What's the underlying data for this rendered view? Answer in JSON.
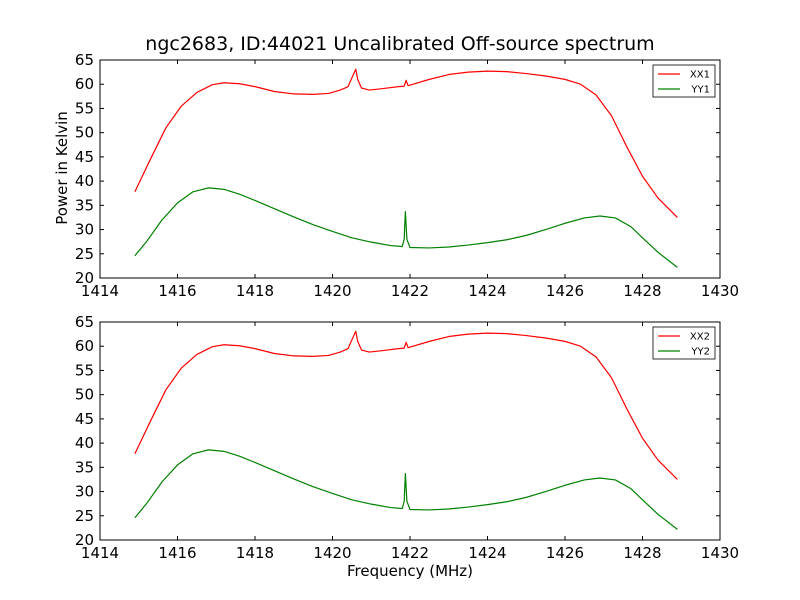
{
  "chart_data": {
    "title": "ngc2683, ID:44021 Uncalibrated Off-source spectrum",
    "ylabel": "Power in Kelvin",
    "xlabel": "Frequency (MHz)",
    "panels": [
      {
        "type": "line",
        "xlim": [
          1414,
          1430
        ],
        "ylim": [
          20,
          65
        ],
        "xticks": [
          1414,
          1416,
          1418,
          1420,
          1422,
          1424,
          1426,
          1428,
          1430
        ],
        "yticks": [
          20,
          25,
          30,
          35,
          40,
          45,
          50,
          55,
          60,
          65
        ],
        "grid": false,
        "legend_position": "top-right",
        "series": [
          {
            "name": "XX1",
            "color": "#ff0000",
            "points": [
              [
                1414.9,
                37.8
              ],
              [
                1415.3,
                44.5
              ],
              [
                1415.7,
                51.0
              ],
              [
                1416.1,
                55.5
              ],
              [
                1416.5,
                58.3
              ],
              [
                1416.9,
                59.9
              ],
              [
                1417.2,
                60.3
              ],
              [
                1417.6,
                60.1
              ],
              [
                1418.0,
                59.5
              ],
              [
                1418.5,
                58.5
              ],
              [
                1419.0,
                58.0
              ],
              [
                1419.5,
                57.9
              ],
              [
                1419.9,
                58.1
              ],
              [
                1420.2,
                58.8
              ],
              [
                1420.4,
                59.5
              ],
              [
                1420.55,
                62.2
              ],
              [
                1420.6,
                63.1
              ],
              [
                1420.65,
                61.0
              ],
              [
                1420.75,
                59.2
              ],
              [
                1420.95,
                58.8
              ],
              [
                1421.3,
                59.1
              ],
              [
                1421.7,
                59.5
              ],
              [
                1421.85,
                59.6
              ],
              [
                1421.9,
                60.8
              ],
              [
                1421.95,
                59.7
              ],
              [
                1422.5,
                61.0
              ],
              [
                1423.0,
                62.0
              ],
              [
                1423.5,
                62.5
              ],
              [
                1424.0,
                62.7
              ],
              [
                1424.5,
                62.6
              ],
              [
                1425.0,
                62.2
              ],
              [
                1425.5,
                61.7
              ],
              [
                1426.0,
                61.0
              ],
              [
                1426.4,
                60.0
              ],
              [
                1426.8,
                57.8
              ],
              [
                1427.2,
                53.5
              ],
              [
                1427.6,
                47.0
              ],
              [
                1428.0,
                41.0
              ],
              [
                1428.4,
                36.5
              ],
              [
                1428.9,
                32.5
              ]
            ]
          },
          {
            "name": "YY1",
            "color": "#008000",
            "points": [
              [
                1414.9,
                24.6
              ],
              [
                1415.2,
                27.5
              ],
              [
                1415.6,
                32.0
              ],
              [
                1416.0,
                35.5
              ],
              [
                1416.4,
                37.8
              ],
              [
                1416.8,
                38.6
              ],
              [
                1417.2,
                38.3
              ],
              [
                1417.6,
                37.3
              ],
              [
                1418.0,
                36.0
              ],
              [
                1418.5,
                34.3
              ],
              [
                1419.0,
                32.6
              ],
              [
                1419.5,
                31.0
              ],
              [
                1420.0,
                29.6
              ],
              [
                1420.5,
                28.3
              ],
              [
                1421.0,
                27.4
              ],
              [
                1421.5,
                26.7
              ],
              [
                1421.8,
                26.5
              ],
              [
                1421.85,
                28.0
              ],
              [
                1421.88,
                33.7
              ],
              [
                1421.92,
                28.0
              ],
              [
                1422.0,
                26.3
              ],
              [
                1422.5,
                26.2
              ],
              [
                1423.0,
                26.4
              ],
              [
                1423.5,
                26.8
              ],
              [
                1424.0,
                27.3
              ],
              [
                1424.5,
                27.9
              ],
              [
                1425.0,
                28.8
              ],
              [
                1425.5,
                30.0
              ],
              [
                1426.0,
                31.3
              ],
              [
                1426.5,
                32.4
              ],
              [
                1426.9,
                32.8
              ],
              [
                1427.3,
                32.4
              ],
              [
                1427.7,
                30.6
              ],
              [
                1428.0,
                28.3
              ],
              [
                1428.4,
                25.3
              ],
              [
                1428.9,
                22.2
              ]
            ]
          }
        ]
      },
      {
        "type": "line",
        "xlim": [
          1414,
          1430
        ],
        "ylim": [
          20,
          65
        ],
        "xticks": [
          1414,
          1416,
          1418,
          1420,
          1422,
          1424,
          1426,
          1428,
          1430
        ],
        "yticks": [
          20,
          25,
          30,
          35,
          40,
          45,
          50,
          55,
          60,
          65
        ],
        "grid": false,
        "legend_position": "top-right",
        "series": [
          {
            "name": "XX2",
            "color": "#ff0000",
            "points": [
              [
                1414.9,
                37.8
              ],
              [
                1415.3,
                44.5
              ],
              [
                1415.7,
                51.0
              ],
              [
                1416.1,
                55.5
              ],
              [
                1416.5,
                58.3
              ],
              [
                1416.9,
                59.9
              ],
              [
                1417.2,
                60.3
              ],
              [
                1417.6,
                60.1
              ],
              [
                1418.0,
                59.5
              ],
              [
                1418.5,
                58.5
              ],
              [
                1419.0,
                58.0
              ],
              [
                1419.5,
                57.9
              ],
              [
                1419.9,
                58.1
              ],
              [
                1420.2,
                58.8
              ],
              [
                1420.4,
                59.5
              ],
              [
                1420.55,
                62.2
              ],
              [
                1420.6,
                63.1
              ],
              [
                1420.65,
                61.0
              ],
              [
                1420.75,
                59.2
              ],
              [
                1420.95,
                58.8
              ],
              [
                1421.3,
                59.1
              ],
              [
                1421.7,
                59.5
              ],
              [
                1421.85,
                59.6
              ],
              [
                1421.9,
                60.8
              ],
              [
                1421.95,
                59.7
              ],
              [
                1422.5,
                61.0
              ],
              [
                1423.0,
                62.0
              ],
              [
                1423.5,
                62.5
              ],
              [
                1424.0,
                62.7
              ],
              [
                1424.5,
                62.6
              ],
              [
                1425.0,
                62.2
              ],
              [
                1425.5,
                61.7
              ],
              [
                1426.0,
                61.0
              ],
              [
                1426.4,
                60.0
              ],
              [
                1426.8,
                57.8
              ],
              [
                1427.2,
                53.5
              ],
              [
                1427.6,
                47.0
              ],
              [
                1428.0,
                41.0
              ],
              [
                1428.4,
                36.5
              ],
              [
                1428.9,
                32.5
              ]
            ]
          },
          {
            "name": "YY2",
            "color": "#008000",
            "points": [
              [
                1414.9,
                24.6
              ],
              [
                1415.2,
                27.5
              ],
              [
                1415.6,
                32.0
              ],
              [
                1416.0,
                35.5
              ],
              [
                1416.4,
                37.8
              ],
              [
                1416.8,
                38.6
              ],
              [
                1417.2,
                38.3
              ],
              [
                1417.6,
                37.3
              ],
              [
                1418.0,
                36.0
              ],
              [
                1418.5,
                34.3
              ],
              [
                1419.0,
                32.6
              ],
              [
                1419.5,
                31.0
              ],
              [
                1420.0,
                29.6
              ],
              [
                1420.5,
                28.3
              ],
              [
                1421.0,
                27.4
              ],
              [
                1421.5,
                26.7
              ],
              [
                1421.8,
                26.5
              ],
              [
                1421.85,
                28.0
              ],
              [
                1421.88,
                33.7
              ],
              [
                1421.92,
                28.0
              ],
              [
                1422.0,
                26.3
              ],
              [
                1422.5,
                26.2
              ],
              [
                1423.0,
                26.4
              ],
              [
                1423.5,
                26.8
              ],
              [
                1424.0,
                27.3
              ],
              [
                1424.5,
                27.9
              ],
              [
                1425.0,
                28.8
              ],
              [
                1425.5,
                30.0
              ],
              [
                1426.0,
                31.3
              ],
              [
                1426.5,
                32.4
              ],
              [
                1426.9,
                32.8
              ],
              [
                1427.3,
                32.4
              ],
              [
                1427.7,
                30.6
              ],
              [
                1428.0,
                28.3
              ],
              [
                1428.4,
                25.3
              ],
              [
                1428.9,
                22.2
              ]
            ]
          }
        ]
      }
    ]
  }
}
